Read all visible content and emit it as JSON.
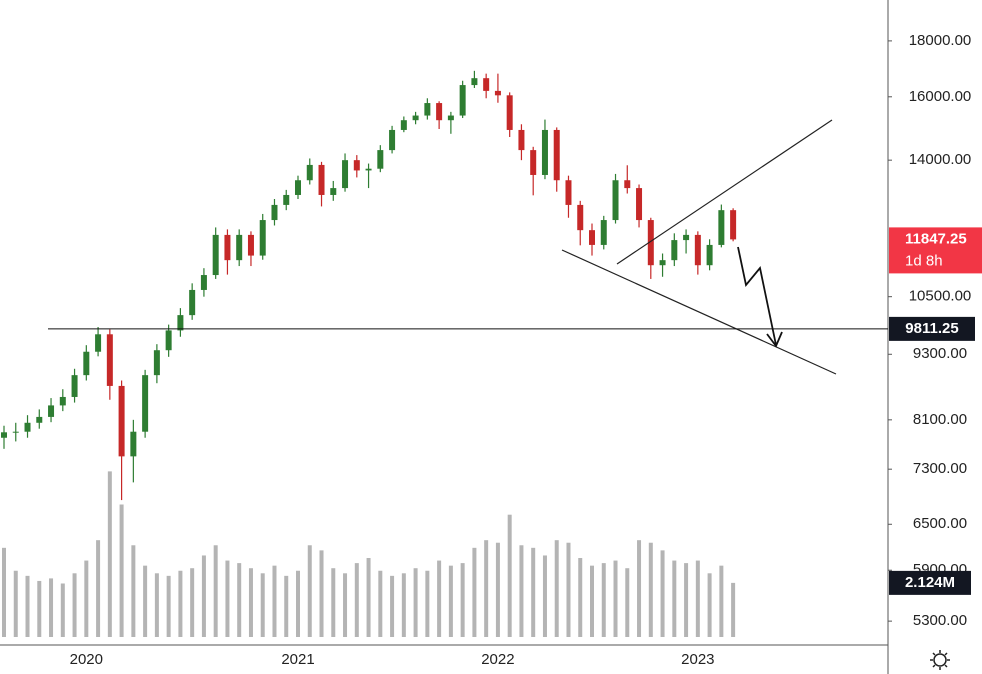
{
  "chart_data": {
    "type": "candlestick",
    "categories": [
      null,
      null,
      null,
      null,
      null,
      null,
      null,
      "2020",
      null,
      null,
      null,
      null,
      null,
      null,
      null,
      null,
      null,
      null,
      null,
      null,
      null,
      null,
      null,
      null,
      null,
      "2021",
      null,
      null,
      null,
      null,
      null,
      null,
      null,
      null,
      null,
      null,
      null,
      null,
      null,
      null,
      null,
      null,
      "2022",
      null,
      null,
      null,
      null,
      null,
      null,
      null,
      null,
      null,
      null,
      null,
      null,
      null,
      null,
      null,
      null,
      "2023",
      null,
      null,
      null
    ],
    "open": [
      7800,
      7890,
      7900,
      8050,
      8150,
      8350,
      8500,
      8900,
      9350,
      9700,
      8700,
      7500,
      7900,
      8900,
      9380,
      9780,
      10100,
      10650,
      10990,
      11960,
      11340,
      11960,
      11450,
      12340,
      12740,
      13010,
      13420,
      13860,
      13010,
      13200,
      14000,
      13700,
      13750,
      14300,
      14920,
      15230,
      15380,
      15790,
      15230,
      15380,
      16400,
      16640,
      16200,
      16050,
      14920,
      14300,
      13570,
      14920,
      13420,
      12740,
      12080,
      11710,
      12340,
      13420,
      13200,
      12340,
      11220,
      11340,
      11830,
      11960,
      11220,
      11710,
      12600
    ],
    "high": [
      8000,
      8050,
      8180,
      8280,
      8480,
      8640,
      9020,
      9480,
      9850,
      9800,
      8800,
      8100,
      9000,
      9500,
      9900,
      10250,
      10800,
      11150,
      12150,
      12100,
      12100,
      12050,
      12500,
      12900,
      13150,
      13550,
      14050,
      13950,
      13400,
      14200,
      14150,
      13900,
      14450,
      15050,
      15350,
      15500,
      15950,
      15850,
      15500,
      16550,
      16900,
      16800,
      16800,
      16150,
      15100,
      14400,
      15250,
      15000,
      13550,
      12850,
      12250,
      12450,
      13600,
      13850,
      13300,
      12400,
      11500,
      12000,
      12100,
      12050,
      11850,
      12750,
      12650
    ],
    "low": [
      7620,
      7740,
      7800,
      7950,
      8060,
      8250,
      8400,
      8800,
      9260,
      8450,
      6840,
      7100,
      7800,
      8750,
      9250,
      9650,
      10000,
      10500,
      10900,
      11000,
      11200,
      11200,
      11350,
      12200,
      12600,
      12900,
      13300,
      12700,
      12850,
      13100,
      13500,
      13200,
      13650,
      14200,
      14850,
      15100,
      15250,
      14950,
      14800,
      15300,
      16300,
      15950,
      15800,
      14700,
      14000,
      13000,
      13450,
      13100,
      12400,
      11700,
      11450,
      11600,
      12250,
      13050,
      12150,
      10900,
      10950,
      11200,
      11500,
      11000,
      11100,
      11650,
      11800
    ],
    "close": [
      7890,
      7900,
      8050,
      8150,
      8350,
      8500,
      8900,
      9350,
      9700,
      8700,
      7500,
      7900,
      8900,
      9380,
      9780,
      10100,
      10650,
      10990,
      11960,
      11340,
      11960,
      11450,
      12340,
      12740,
      13010,
      13420,
      13860,
      13010,
      13200,
      14000,
      13700,
      13750,
      14300,
      14920,
      15230,
      15380,
      15790,
      15230,
      15380,
      16400,
      16640,
      16200,
      16050,
      14920,
      14300,
      13570,
      14920,
      13420,
      12740,
      12080,
      11710,
      12340,
      13420,
      13200,
      12340,
      11220,
      11340,
      11830,
      11960,
      11220,
      11710,
      12600,
      11847.25
    ],
    "up_color": "#2e7d32",
    "down_color": "#c62828",
    "log_scale": true,
    "grid": false,
    "ylim": [
      5040,
      19620
    ],
    "yticks": [
      {
        "value": 18000,
        "label": "18000.00"
      },
      {
        "value": 16000,
        "label": "16000.00"
      },
      {
        "value": 14000,
        "label": "14000.00"
      },
      {
        "value": 10500,
        "label": "10500.00"
      },
      {
        "value": 9300,
        "label": "9300.00"
      },
      {
        "value": 8100,
        "label": "8100.00"
      },
      {
        "value": 7300,
        "label": "7300.00"
      },
      {
        "value": 6500,
        "label": "6500.00"
      },
      {
        "value": 5900,
        "label": "5900.00"
      },
      {
        "value": 5300,
        "label": "5300.00"
      }
    ],
    "countdown": "1d 8h",
    "horizontal_line": 9811.25,
    "volume": {
      "color": "#b4b4b4",
      "ylim": [
        0,
        25
      ],
      "values": [
        3.5,
        2.6,
        2.4,
        2.2,
        2.3,
        2.1,
        2.5,
        3.0,
        3.8,
        6.5,
        5.2,
        3.6,
        2.8,
        2.5,
        2.4,
        2.6,
        2.7,
        3.2,
        3.6,
        3.0,
        2.9,
        2.7,
        2.5,
        2.8,
        2.4,
        2.6,
        3.6,
        3.4,
        2.7,
        2.5,
        2.9,
        3.1,
        2.6,
        2.4,
        2.5,
        2.7,
        2.6,
        3.0,
        2.8,
        2.9,
        3.5,
        3.8,
        3.7,
        4.8,
        3.6,
        3.5,
        3.2,
        3.8,
        3.7,
        3.1,
        2.8,
        2.9,
        3.0,
        2.7,
        3.8,
        3.7,
        3.4,
        3.0,
        2.9,
        3.0,
        2.5,
        2.8,
        2.124
      ],
      "value_labels": {
        "62": "2.124M"
      }
    }
  }
}
